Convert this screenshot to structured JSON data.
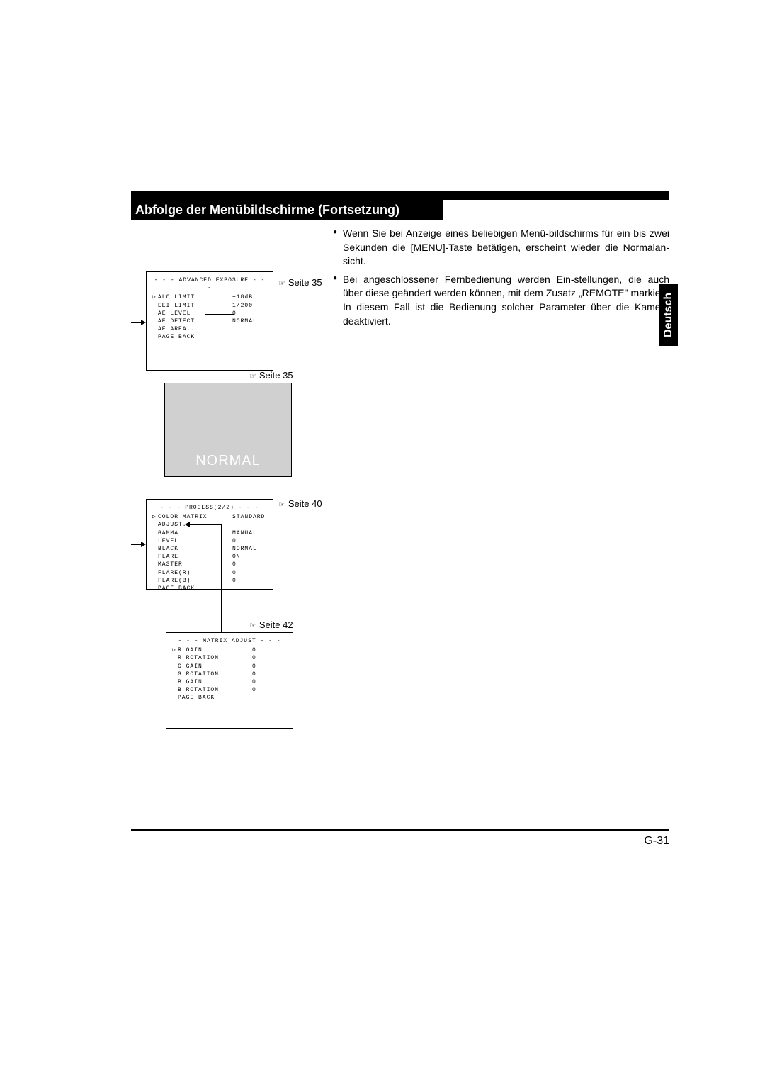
{
  "title": "Abfolge der Menübildschirme (Fortsetzung)",
  "side_tab": "Deutsch",
  "page_number": "G-31",
  "bullets": [
    "Wenn Sie bei Anzeige eines beliebigen Menü-bildschirms für ein bis zwei Sekunden die [MENU]-Taste betätigen, erscheint wieder die Normalan-sicht.",
    "Bei angeschlossener Fernbedienung werden Ein-stellungen, die auch über diese geändert werden können, mit dem Zusatz „REMOTE\" markiert. In diesem Fall ist die Bedienung solcher Parameter über die Kamera deaktiviert."
  ],
  "refs": {
    "r1": "Seite 35",
    "r2": "Seite 35",
    "r3": "Seite 40",
    "r4": "Seite 42"
  },
  "ref_symbol": "☞",
  "box1": {
    "header": "- - - ADVANCED EXPOSURE - - -",
    "rows": [
      {
        "k": "ALC LIMIT",
        "v": "+18dB",
        "cursor": true
      },
      {
        "k": "EEI LIMIT",
        "v": "1/200"
      },
      {
        "k": "AE LEVEL",
        "v": "0"
      },
      {
        "k": "AE DETECT",
        "v": "NORMAL"
      },
      {
        "k": "AE AREA..",
        "v": ""
      },
      {
        "k": "PAGE BACK",
        "v": ""
      }
    ]
  },
  "box2": {
    "label": "NORMAL"
  },
  "box3": {
    "header": "- - -  PROCESS(2/2)  - - -",
    "rows": [
      {
        "k": "COLOR MATRIX",
        "v": "STANDARD",
        "cursor": true
      },
      {
        "k": " ADJUST..",
        "v": ""
      },
      {
        "k": "GAMMA",
        "v": "MANUAL"
      },
      {
        "k": " LEVEL",
        "v": "0"
      },
      {
        "k": "BLACK",
        "v": "NORMAL"
      },
      {
        "k": "FLARE",
        "v": "ON"
      },
      {
        "k": " MASTER",
        "v": "0"
      },
      {
        "k": " FLARE(R)",
        "v": "0"
      },
      {
        "k": " FLARE(B)",
        "v": "0"
      },
      {
        "k": "PAGE BACK",
        "v": ""
      }
    ]
  },
  "box4": {
    "header": "- - - MATRIX ADJUST - - -",
    "rows": [
      {
        "k": "R GAIN",
        "v": "0",
        "cursor": true
      },
      {
        "k": "R ROTATION",
        "v": "0"
      },
      {
        "k": "G GAIN",
        "v": "0"
      },
      {
        "k": "G ROTATION",
        "v": "0"
      },
      {
        "k": "B GAIN",
        "v": "0"
      },
      {
        "k": "B ROTATION",
        "v": "0"
      },
      {
        "k": "PAGE BACK",
        "v": ""
      }
    ]
  }
}
